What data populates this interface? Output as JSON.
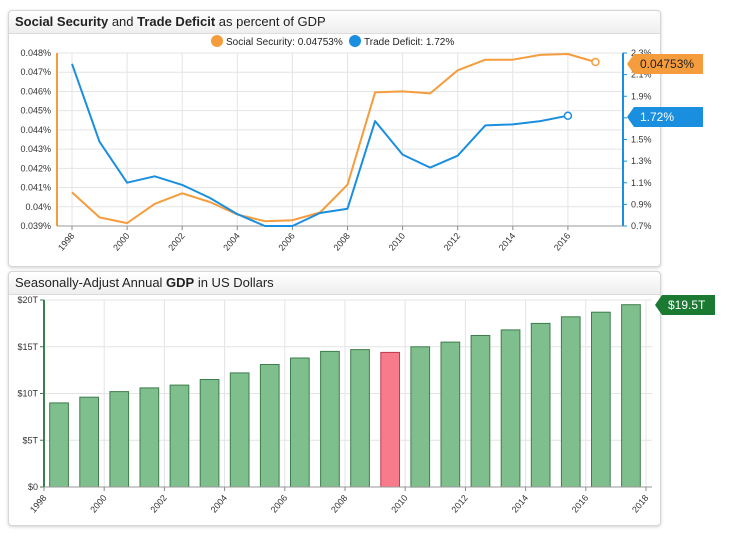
{
  "panel1": {
    "title_bold1": "Social Security",
    "title_mid": " and ",
    "title_bold2": "Trade Deficit",
    "title_rest": " as percent of GDP"
  },
  "panel2": {
    "title_pre": "Seasonally-Adjust Annual ",
    "title_bold": "GDP",
    "title_rest": " in US Dollars"
  },
  "colors": {
    "ss": "#f59c3c",
    "td": "#1a8fe0",
    "bar": "#7fbf8e",
    "bar_edge": "#3e7d4d",
    "bar_highlight": "#f77b8a",
    "gdp_label": "#1a7a32"
  },
  "chart_data": [
    {
      "type": "line",
      "title": "Social Security and Trade Deficit as percent of GDP",
      "x": [
        1998,
        1999,
        2000,
        2001,
        2002,
        2003,
        2004,
        2005,
        2006,
        2007,
        2008,
        2009,
        2010,
        2011,
        2012,
        2013,
        2014,
        2015,
        2016,
        2017
      ],
      "x_ticks": [
        "1998",
        "2000",
        "2002",
        "2004",
        "2006",
        "2008",
        "2010",
        "2012",
        "2014",
        "2016"
      ],
      "left_axis": {
        "ylim": [
          0.039,
          0.048
        ],
        "ticks": [
          "0.039%",
          "0.04%",
          "0.041%",
          "0.042%",
          "0.043%",
          "0.044%",
          "0.045%",
          "0.046%",
          "0.047%",
          "0.048%"
        ]
      },
      "right_axis": {
        "ylim": [
          0.7,
          2.3
        ],
        "ticks": [
          "0.7%",
          "0.9%",
          "1.1%",
          "1.3%",
          "1.5%",
          "1.7%",
          "1.9%",
          "2.1%",
          "2.3%"
        ]
      },
      "series": [
        {
          "name": "Social Security",
          "legend": "Social Security: 0.04753%",
          "axis": "left",
          "values": [
            0.04075,
            0.03945,
            0.03915,
            0.04015,
            0.0407,
            0.04025,
            0.0396,
            0.03925,
            0.0393,
            0.0397,
            0.04115,
            0.04595,
            0.046,
            0.0459,
            0.0471,
            0.04765,
            0.04765,
            0.0479,
            0.04795,
            0.04753
          ],
          "last_label": "0.04753%"
        },
        {
          "name": "Trade Deficit",
          "legend": "Trade Deficit: 1.72%",
          "axis": "right",
          "values": [
            2.2,
            1.48,
            1.1,
            1.16,
            1.08,
            0.96,
            0.81,
            0.7,
            0.7,
            0.82,
            0.86,
            1.67,
            1.36,
            1.24,
            1.35,
            1.63,
            1.64,
            1.67,
            1.72,
            null
          ],
          "last_label": "1.72%"
        }
      ]
    },
    {
      "type": "bar",
      "title": "Seasonally-Adjust Annual GDP in US Dollars",
      "x": [
        1998,
        1999,
        2000,
        2001,
        2002,
        2003,
        2004,
        2005,
        2006,
        2007,
        2008,
        2009,
        2010,
        2011,
        2012,
        2013,
        2014,
        2015,
        2016,
        2017
      ],
      "values": [
        9.0,
        9.6,
        10.2,
        10.6,
        10.9,
        11.5,
        12.2,
        13.1,
        13.8,
        14.5,
        14.7,
        14.4,
        15.0,
        15.5,
        16.2,
        16.8,
        17.5,
        18.2,
        18.7,
        19.5
      ],
      "highlight_x": 2009,
      "x_ticks": [
        "1998",
        "2000",
        "2002",
        "2004",
        "2006",
        "2008",
        "2010",
        "2012",
        "2014",
        "2016",
        "2018"
      ],
      "ylim": [
        0,
        20
      ],
      "y_ticks": [
        "$0",
        "$5T",
        "$10T",
        "$15T",
        "$20T"
      ],
      "last_label": "$19.5T"
    }
  ]
}
